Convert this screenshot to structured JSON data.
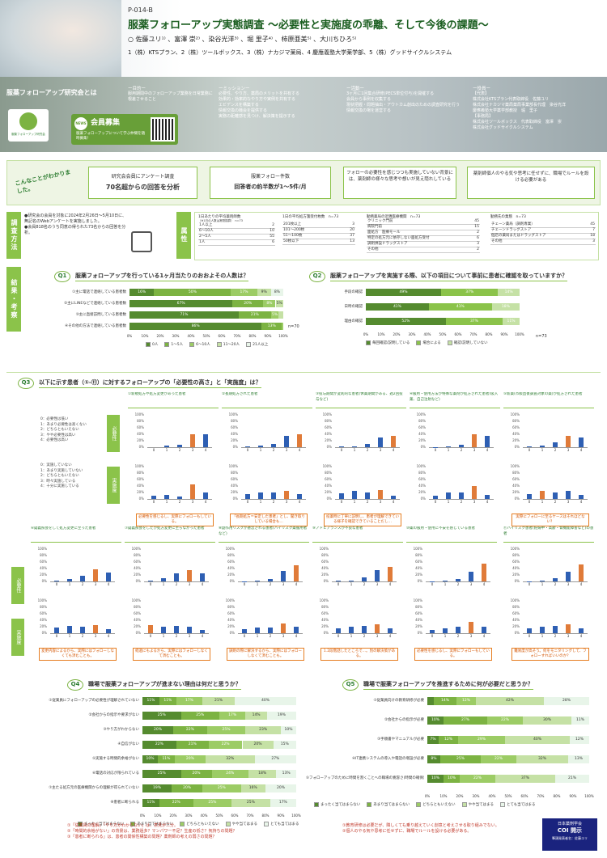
{
  "header": {
    "code": "P-014-B",
    "title": "服薬フォローアップ実態調査 〜必要性と実施度の乖離、そして今後の課題〜",
    "authors": "○ 佐藤ユリ¹⁾ 、富澤 崇²⁾ 、染谷光洋³⁾ 、堀 里子⁴⁾ 、柿原亜美⁵⁾ 、大川ちひろ⁵⁾",
    "affiliations": "1（株）KTSプラン、2（株）ツールボックス、3（株）ナカジマ薬局、4 慶應義塾大学薬学部、5（株）グッドサイクルシステム"
  },
  "intro": {
    "heading": "服薬フォローアップ研究会とは",
    "logo_text": "服薬フォローアップ研究会",
    "recruit_title": "会員募集",
    "recruit_badge": "NEWS",
    "recruit_sub": "服薬フォローアップについて学ぶ仲間を随時募集！",
    "purpose_title": "ー目的ー",
    "purpose_text": "服用期間中のフォローアップ業務を日常業務に根差させること",
    "mission_title": "ーミッションー",
    "mission_items": [
      "必要性、やり方、薬局のメリットを共有する",
      "効果的・効率的なやり方や実例を共有する",
      "エビデンスを構築する",
      "情報交換の機会を提供する",
      "実務の距離感を見つけ、解決策を提示する"
    ],
    "activity_title": "ー活動ー",
    "activity_items": [
      "3ヶ月に1回集合研修(PECS単位付与)を開催する",
      "会員から事例を収集する",
      "現状把握・問題抽出・アウトカム創出のための調査研究を行う",
      "情報交換の場を運営する"
    ],
    "staff_title": "ー役員ー",
    "staff_items": [
      "【代表】",
      "株式会社KTSプラン代表取締役　佐藤ユリ",
      "株式会社ナカジマ薬局薬局事業部長代理　染谷光洋",
      "慶應義塾大学薬学部教授　堀　里子",
      "【事務局】",
      "株式会社ツールボックス　代表取締役　富澤　崇",
      "株式会社グッドサイクルシステム"
    ]
  },
  "summary": {
    "lead": "こんなことがわかりました。",
    "cards": [
      {
        "line1": "研究会会員にアンケート調査",
        "line2": "70名超からの回答を分析"
      },
      {
        "line1": "服薬フォロー件数",
        "line2": "回答者の約半数が1〜5件/月"
      },
      {
        "line1": "フォローの必要性を感じつつも実施していない背景には、薬剤師の様々な思考や想いが見え隠れしている",
        "line2": ""
      },
      {
        "line1": "薬剤師個人のやる気や思考に任せずに、職場でルールを設ける必要がある",
        "line2": ""
      }
    ]
  },
  "method": {
    "tag": "調査方法",
    "text": [
      "●研究会の会員を対象に2024年2月26日〜5月10日に、無記名のWebアンケートを実施しました。",
      "●会員818名のうち同意の得られた73名からの回答を分析。"
    ]
  },
  "attributes": {
    "tag": "属性",
    "t1": {
      "title": "1日あたりの平均薬剤師数",
      "sub": "（※1日の人数は常勤換算）　n=73",
      "rows": [
        [
          "1人以上",
          "2"
        ],
        [
          "6〜10人",
          "10"
        ],
        [
          "2〜5人",
          "55"
        ],
        [
          "1人",
          "6"
        ]
      ]
    },
    "t2": {
      "title": "1日の平均処方箋受付枚数　n=73",
      "rows": [
        [
          "201枚以上",
          "3"
        ],
        [
          "101〜200枚",
          "20"
        ],
        [
          "51〜100枚",
          "37"
        ],
        [
          "50枚以下",
          "13"
        ]
      ]
    },
    "t3": {
      "title": "勤務薬局の近隣医療機関　n=73",
      "rows": [
        [
          "クリニック門前",
          "45"
        ],
        [
          "病院門前",
          "15"
        ],
        [
          "面処方　医療モール",
          "2"
        ],
        [
          "特定の処方元に依存しない面処方受付",
          "6"
        ],
        [
          "調剤併設ドラッグストア",
          "3"
        ],
        [
          "その他",
          "2"
        ]
      ]
    },
    "t4": {
      "title": "勤務先の業態　n=73",
      "rows": [
        [
          "チェーン薬局（調剤専業）",
          "45"
        ],
        [
          "チェーンドラッグストア",
          "7"
        ],
        [
          "個店の薬局またはドラッグストア",
          "18"
        ],
        [
          "その他",
          "3"
        ]
      ]
    }
  },
  "results_tag": "結果・考察",
  "q1": {
    "label": "Q1",
    "title": "服薬フォローアップを行っている1ヶ月当たりのおおよその人数は？",
    "rows": [
      "①主に電話で連絡している患者数",
      "②主にLINEなどで連絡している患者数",
      "③主に直接訪問している患者数",
      "④その他の方法で連絡している患者数"
    ],
    "segments": [
      [
        16,
        50,
        17,
        9,
        8
      ],
      [
        67,
        20,
        8,
        5,
        0
      ],
      [
        71,
        21,
        5,
        3,
        0
      ],
      [
        86,
        13,
        1,
        0,
        0
      ]
    ],
    "colors": [
      "#558b2f",
      "#7cb342",
      "#9ccc65",
      "#c5e1a5",
      "#e8f5e9"
    ],
    "legend": [
      "0人",
      "1〜5人",
      "6〜10人",
      "11〜20人",
      "21人以上"
    ],
    "xticks": [
      "0%",
      "10%",
      "20%",
      "30%",
      "40%",
      "50%",
      "60%",
      "70%",
      "80%",
      "90%",
      "100%"
    ],
    "n": "n=70"
  },
  "q2": {
    "label": "Q2",
    "title": "服薬フォローアップを実施する際、以下の項目について事前に患者に確認を取っていますか？",
    "rows": [
      "手段の確認",
      "日時の確認",
      "理由の確認"
    ],
    "segments": [
      [
        49,
        37,
        14
      ],
      [
        41,
        41,
        18
      ],
      [
        52,
        37,
        11
      ]
    ],
    "colors": [
      "#558b2f",
      "#8bc34a",
      "#c5e1a5"
    ],
    "legend": [
      "毎回確認/説明している",
      "場合による",
      "確認/説明していない"
    ],
    "xticks": [
      "0%",
      "10%",
      "20%",
      "30%",
      "40%",
      "50%",
      "60%",
      "70%",
      "80%",
      "90%",
      "100%"
    ],
    "n": "n=73"
  },
  "q3": {
    "label": "Q3",
    "title": "以下に示す患者（①-⑪）に対するフォローアップの「必要性の高さ」と「実施度」は？",
    "scale_need": [
      "0：必要性は低い",
      "1：あまり必要性は高くない",
      "2：どちらともいえない",
      "3：やや必要性は高い",
      "4：必要性は高い"
    ],
    "scale_do": [
      "0：実施していない",
      "1：あまり実施していない",
      "2：どちらともいえない",
      "3：時々実施している",
      "4：十分に実施している"
    ],
    "tag_need": "必要性",
    "tag_do": "実施度",
    "yticks": [
      "100%",
      "80%",
      "60%",
      "40%",
      "20%",
      "0%"
    ],
    "xlabels": [
      "0",
      "1",
      "2",
      "3",
      "4"
    ],
    "panels": [
      {
        "title": "①新規処方や処方変更があった患者",
        "need": [
          0,
          5,
          8,
          40,
          40
        ],
        "do": [
          10,
          12,
          8,
          45,
          20
        ],
        "note": "必要性を感じるし、実際にフォローもしている。"
      },
      {
        "title": "②長期処方された患者",
        "need": [
          2,
          4,
          10,
          35,
          40
        ],
        "do": [
          15,
          20,
          20,
          25,
          15
        ],
        "note": "「長期処方＝安定した患者」とし、聞き取りしている場合も…"
      },
      {
        "title": "③投与期間が変則的な患者(休薬期間がある、週2回投与など)",
        "need": [
          2,
          3,
          10,
          30,
          35
        ],
        "do": [
          18,
          25,
          20,
          28,
          10
        ],
        "note": "投薬時に丁寧に説明し、患者が理解できている様子を確認できていることだし…"
      },
      {
        "title": "④服用・使用方法が特殊な薬剤が処方された患者(吸入薬、自己注射など)",
        "need": [
          1,
          3,
          8,
          40,
          35
        ],
        "do": [
          10,
          20,
          20,
          40,
          12
        ],
        "note": ""
      },
      {
        "title": "⑤新薬(市販直後調査対象の薬)が処方された患者",
        "need": [
          2,
          6,
          15,
          35,
          30
        ],
        "do": [
          15,
          25,
          20,
          25,
          12
        ],
        "note": "実際にフォローに至るケースはそれほどない？"
      },
      {
        "title": "⑥疑義照会をして処方変更に至った患者",
        "need": [
          2,
          8,
          18,
          38,
          28
        ],
        "do": [
          18,
          22,
          20,
          25,
          12
        ],
        "note": "変更内容によるから、実際にはフォローしなくても済むことも。"
      },
      {
        "title": "⑦疑義照会をしたが処方変更に至らなかった患者",
        "need": [
          2,
          10,
          25,
          35,
          25
        ],
        "do": [
          25,
          20,
          22,
          20,
          10
        ],
        "note": "経過にもよるから、実際にはフォローしなくて済むことも。"
      },
      {
        "title": "⑧副作用リスクが懸念される患者(ハイリスク薬服用者など)",
        "need": [
          1,
          3,
          8,
          32,
          50
        ],
        "do": [
          12,
          18,
          18,
          30,
          20
        ],
        "note": "調剤の際に解決するから、実際にはフォローしなくて済むことも。"
      },
      {
        "title": "⑨アドヒアランスが不良な患者",
        "need": [
          2,
          3,
          12,
          35,
          45
        ],
        "do": [
          15,
          20,
          22,
          28,
          15
        ],
        "note": "1.2段階話したところで…。別の解決策がある。"
      },
      {
        "title": "⑩薬の服用・使用に不安を感じている患者",
        "need": [
          1,
          3,
          8,
          30,
          55
        ],
        "do": [
          10,
          15,
          20,
          35,
          20
        ],
        "note": "必要性を感じるし、実際にフォローもしている。"
      },
      {
        "title": "⑪ハイリスク患者(妊婦中・高齢・腎機能障害など)の患者",
        "need": [
          1,
          3,
          10,
          30,
          52
        ],
        "do": [
          15,
          20,
          22,
          28,
          15
        ],
        "note": "難易度が高そう。何をモニタリングして、フォローすればいいのか？"
      }
    ]
  },
  "q4": {
    "label": "Q4",
    "title": "職場で服薬フォローアップが進まない理由は何だと思うか？",
    "rows": [
      "①従業員にフォローアップの必要性が理解されていない",
      "②会社からの指示や要求がない",
      "③やり方がわからない",
      "④自信がない",
      "⑤実施する時間的余裕がない",
      "⑥電話の対応が限られている",
      "⑦主たる処方元の医療機関からの理解が得られていない",
      "⑧患者に断られる"
    ],
    "segments": [
      [
        11,
        11,
        17,
        21,
        40
      ],
      [
        25,
        25,
        17,
        14,
        19
      ],
      [
        20,
        22,
        25,
        23,
        10
      ],
      [
        22,
        21,
        22,
        20,
        15
      ],
      [
        10,
        11,
        20,
        32,
        27
      ],
      [
        25,
        20,
        24,
        18,
        13
      ],
      [
        19,
        20,
        25,
        16,
        20
      ],
      [
        11,
        22,
        25,
        25,
        17
      ]
    ],
    "colors": [
      "#558b2f",
      "#7cb342",
      "#9ccc65",
      "#c5e1a5",
      "#e8f5e9"
    ],
    "legend": [
      "まったく当てはまらない",
      "あまり当てはまらない",
      "どちらともいえない",
      "やや当てはまる",
      "とても当てはまる"
    ],
    "xticks": [
      "0%",
      "10%",
      "20%",
      "30%",
      "40%",
      "50%",
      "60%",
      "70%",
      "80%",
      "90%",
      "100%"
    ],
    "notes": [
      "①「従業員の理解」「やり方がわからない」は、意見が二分。",
      "②「時間的余裕がない」の背景は、業務過多？マンパワー不足？生産の低さ？気持ちの問題？",
      "③「患者に断られる」は、患者の関係性構築の問題？薬剤師の考えの弱さの問題？"
    ]
  },
  "q5": {
    "label": "Q5",
    "title": "職場で服薬フォローアップを推進するために何が必要だと思うか？",
    "rows": [
      "①従業員向けの教育研修が必要",
      "②会社からの指示が必要",
      "③手順書やマニュアルが必要",
      "④IT連携システムの導入や電話の増設が必要",
      "⑤フォローアップのために時間を割くことへの職場の寛容さ(時間の確保)が必要"
    ],
    "segments": [
      [
        4,
        14,
        12,
        42,
        28
      ],
      [
        10,
        27,
        22,
        30,
        11
      ],
      [
        7,
        12,
        29,
        40,
        12
      ],
      [
        8,
        25,
        22,
        32,
        13
      ],
      [
        10,
        10,
        22,
        37,
        21
      ]
    ],
    "colors": [
      "#558b2f",
      "#7cb342",
      "#9ccc65",
      "#c5e1a5",
      "#e8f5e9"
    ],
    "legend": [
      "まったく当てはまらない",
      "あまり当てはまらない",
      "どちらともいえない",
      "やや当てはまる",
      "とても当てはまる"
    ],
    "xticks": [
      "0%",
      "10%",
      "20%",
      "30%",
      "40%",
      "50%",
      "60%",
      "70%",
      "80%",
      "90%",
      "100%"
    ],
    "notes": [
      "①教育研修は必要だが、隣しくても乗り越えていく創意と考えさせる取り組みでない。",
      "②個人のやる気や思考に任せずに、職場でルールを設ける必要がある。"
    ]
  },
  "coi": {
    "org": "日本薬剤学会",
    "title": "COI 開示",
    "text": "筆頭発表者名：佐藤ユリ"
  }
}
